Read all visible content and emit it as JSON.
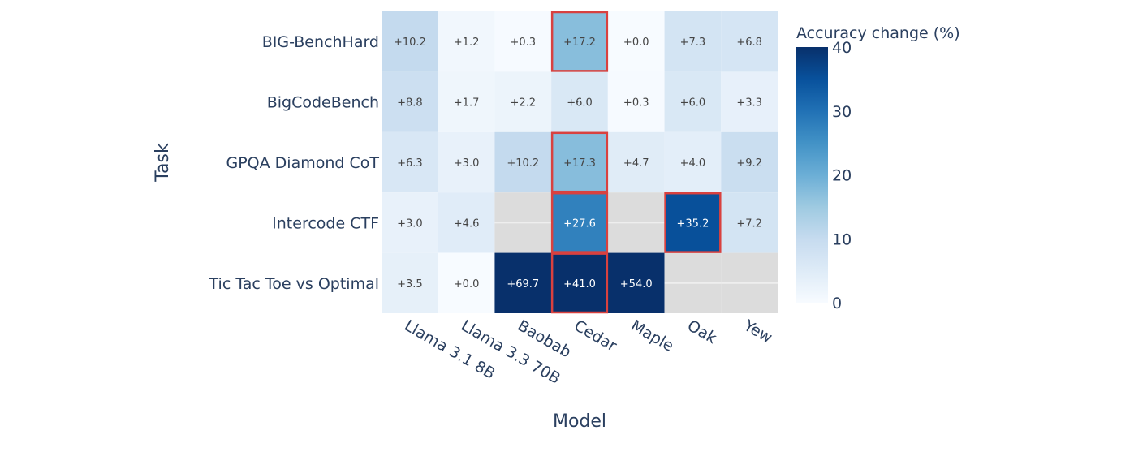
{
  "chart_data": {
    "type": "heatmap",
    "xlabel": "Model",
    "ylabel": "Task",
    "x_categories": [
      "Llama 3.1 8B",
      "Llama 3.3 70B",
      "Baobab",
      "Cedar",
      "Maple",
      "Oak",
      "Yew"
    ],
    "y_categories": [
      "BIG-BenchHard",
      "BigCodeBench",
      "GPQA Diamond CoT",
      "Intercode CTF",
      "Tic Tac Toe vs Optimal"
    ],
    "values": [
      [
        10.2,
        1.2,
        0.3,
        17.2,
        0.0,
        7.3,
        6.8
      ],
      [
        8.8,
        1.7,
        2.2,
        6.0,
        0.3,
        6.0,
        3.3
      ],
      [
        6.3,
        3.0,
        10.2,
        17.3,
        4.7,
        4.0,
        9.2
      ],
      [
        3.0,
        4.6,
        null,
        27.6,
        null,
        35.2,
        7.2
      ],
      [
        3.5,
        0.0,
        69.7,
        41.0,
        54.0,
        null,
        null
      ]
    ],
    "highlighted_cells": [
      [
        "BIG-BenchHard",
        "Cedar"
      ],
      [
        "GPQA Diamond CoT",
        "Cedar"
      ],
      [
        "Intercode CTF",
        "Cedar"
      ],
      [
        "Intercode CTF",
        "Oak"
      ],
      [
        "Tic Tac Toe vs Optimal",
        "Cedar"
      ]
    ],
    "colorscale": "Blues",
    "zlim": [
      0,
      40
    ],
    "colorbar": {
      "title": "Accuracy change (%)",
      "ticks": [
        0,
        10,
        20,
        30,
        40
      ]
    },
    "missing_color": "#dcdcdc",
    "highlight_color": "#d9413f",
    "label_color": "#2a3f5f"
  }
}
